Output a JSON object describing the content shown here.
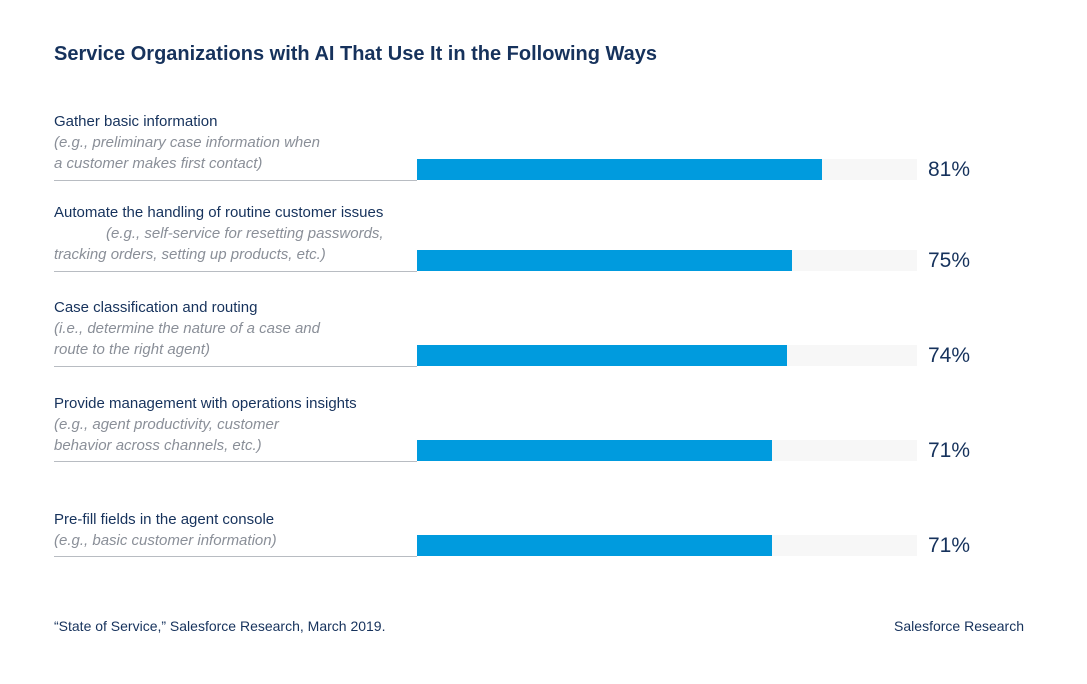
{
  "chart_data": {
    "type": "bar",
    "orientation": "horizontal",
    "title": "Service Organizations with AI That Use It in the Following Ways",
    "categories": [
      "Gather basic information",
      "Automate the handling of routine customer issues",
      "Case classification and routing",
      "Provide management with operations insights",
      "Pre-fill fields in the agent console"
    ],
    "subtitles": [
      "(e.g.,  preliminary case information when\na customer makes first contact)",
      "(e.g., self-service for resetting passwords,\ntracking orders, setting up products, etc.)",
      "(i.e., determine the nature of a case and\nroute to the right agent)",
      "(e.g., agent productivity, customer\nbehavior across channels, etc.)",
      "(e.g., basic customer information)"
    ],
    "values": [
      81,
      75,
      74,
      71,
      71
    ],
    "value_labels": [
      "81%",
      "75%",
      "74%",
      "71%",
      "71%"
    ],
    "xlim": [
      0,
      100
    ],
    "unit": "%",
    "grid": false,
    "legend": "none",
    "colors": {
      "bar": "#009bde",
      "track": "#f7f7f7",
      "text": "#16325c",
      "subtext": "#8a8f98"
    }
  },
  "footer": {
    "source": "“State of Service,” Salesforce Research, March 2019.",
    "brand": "Salesforce Research"
  }
}
